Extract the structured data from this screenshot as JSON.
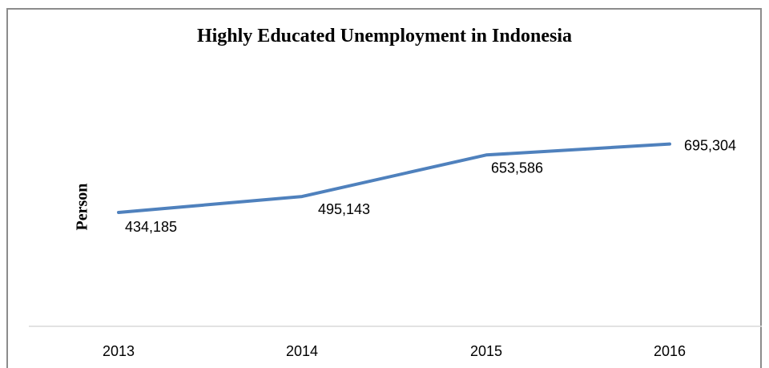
{
  "chart_data": {
    "type": "line",
    "title": "Highly Educated Unemployment in Indonesia",
    "xlabel": "",
    "ylabel": "Person",
    "categories": [
      "2013",
      "2014",
      "2015",
      "2016"
    ],
    "series": [
      {
        "values": [
          434185,
          495143,
          653586,
          695304
        ],
        "data_labels": [
          "434,185",
          "495,143",
          "653,586",
          "695,304"
        ],
        "color": "#4f81bd"
      }
    ],
    "ylim": [
      0,
      1000000
    ],
    "grid": false,
    "legend": "none"
  }
}
